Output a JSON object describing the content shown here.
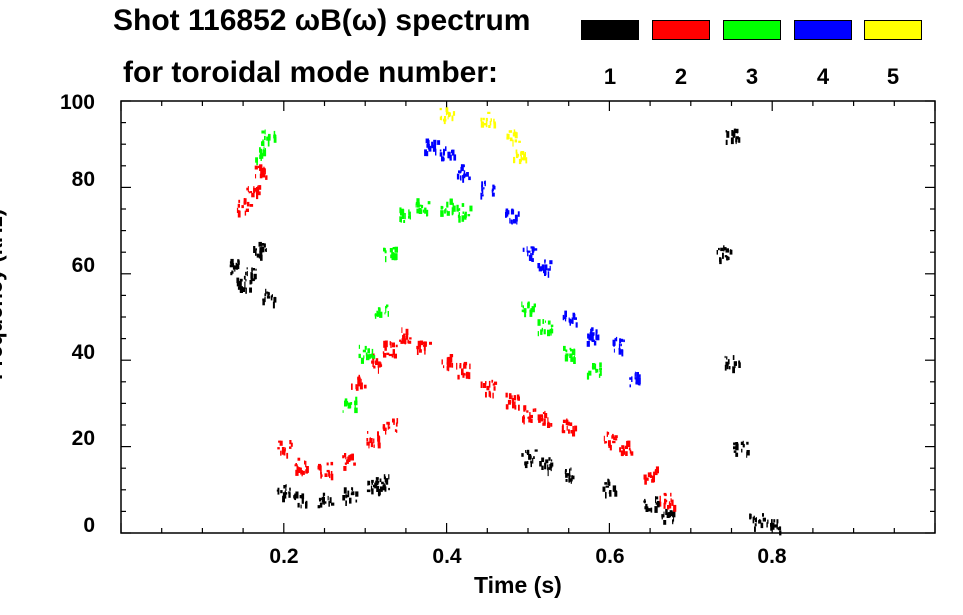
{
  "chart_data": {
    "type": "heatmap",
    "title_line1": "Shot 116852 ωB(ω) spectrum",
    "title_line2": "for toroidal mode number:",
    "xlabel": "Time (s)",
    "ylabel": "Frequency (kHz)",
    "xlim": [
      0.0,
      1.0
    ],
    "ylim": [
      0,
      100
    ],
    "x_ticks": [
      "0.2",
      "0.4",
      "0.6",
      "0.8"
    ],
    "y_ticks": [
      "0",
      "20",
      "40",
      "60",
      "80",
      "100"
    ],
    "legend": [
      {
        "mode": "1",
        "color": "#000000"
      },
      {
        "mode": "2",
        "color": "#ff0000"
      },
      {
        "mode": "3",
        "color": "#00ff00"
      },
      {
        "mode": "4",
        "color": "#0000ff"
      },
      {
        "mode": "5",
        "color": "#ffff00"
      }
    ],
    "series": [
      {
        "name": "n=1",
        "color": "#000000",
        "points": [
          [
            0.14,
            62
          ],
          [
            0.15,
            58
          ],
          [
            0.16,
            60
          ],
          [
            0.17,
            66
          ],
          [
            0.18,
            55
          ],
          [
            0.2,
            10
          ],
          [
            0.22,
            8
          ],
          [
            0.25,
            8
          ],
          [
            0.28,
            9
          ],
          [
            0.31,
            11
          ],
          [
            0.32,
            12
          ],
          [
            0.5,
            18
          ],
          [
            0.52,
            16
          ],
          [
            0.55,
            14
          ],
          [
            0.6,
            11
          ],
          [
            0.65,
            7
          ],
          [
            0.67,
            4
          ],
          [
            0.74,
            65
          ],
          [
            0.75,
            92
          ],
          [
            0.75,
            40
          ],
          [
            0.76,
            20
          ],
          [
            0.78,
            3
          ],
          [
            0.8,
            2
          ]
        ]
      },
      {
        "name": "n=2",
        "color": "#ff0000",
        "points": [
          [
            0.15,
            76
          ],
          [
            0.16,
            79
          ],
          [
            0.17,
            84
          ],
          [
            0.2,
            20
          ],
          [
            0.22,
            16
          ],
          [
            0.25,
            15
          ],
          [
            0.28,
            17
          ],
          [
            0.31,
            22
          ],
          [
            0.33,
            25
          ],
          [
            0.29,
            35
          ],
          [
            0.31,
            40
          ],
          [
            0.33,
            43
          ],
          [
            0.35,
            46
          ],
          [
            0.37,
            44
          ],
          [
            0.4,
            40
          ],
          [
            0.42,
            38
          ],
          [
            0.45,
            34
          ],
          [
            0.48,
            31
          ],
          [
            0.5,
            28
          ],
          [
            0.52,
            27
          ],
          [
            0.55,
            25
          ],
          [
            0.6,
            22
          ],
          [
            0.62,
            20
          ],
          [
            0.65,
            14
          ],
          [
            0.67,
            8
          ]
        ]
      },
      {
        "name": "n=3",
        "color": "#00ff00",
        "points": [
          [
            0.17,
            88
          ],
          [
            0.18,
            92
          ],
          [
            0.28,
            30
          ],
          [
            0.3,
            42
          ],
          [
            0.32,
            52
          ],
          [
            0.33,
            65
          ],
          [
            0.35,
            74
          ],
          [
            0.37,
            76
          ],
          [
            0.4,
            76
          ],
          [
            0.42,
            75
          ],
          [
            0.5,
            52
          ],
          [
            0.52,
            48
          ],
          [
            0.55,
            42
          ],
          [
            0.58,
            38
          ]
        ]
      },
      {
        "name": "n=4",
        "color": "#0000ff",
        "points": [
          [
            0.38,
            90
          ],
          [
            0.4,
            88
          ],
          [
            0.42,
            84
          ],
          [
            0.45,
            80
          ],
          [
            0.48,
            74
          ],
          [
            0.5,
            65
          ],
          [
            0.52,
            62
          ],
          [
            0.55,
            50
          ],
          [
            0.58,
            46
          ],
          [
            0.61,
            44
          ],
          [
            0.63,
            36
          ]
        ]
      },
      {
        "name": "n=5",
        "color": "#ffff00",
        "points": [
          [
            0.4,
            97
          ],
          [
            0.45,
            96
          ],
          [
            0.48,
            92
          ],
          [
            0.49,
            88
          ]
        ]
      }
    ]
  }
}
